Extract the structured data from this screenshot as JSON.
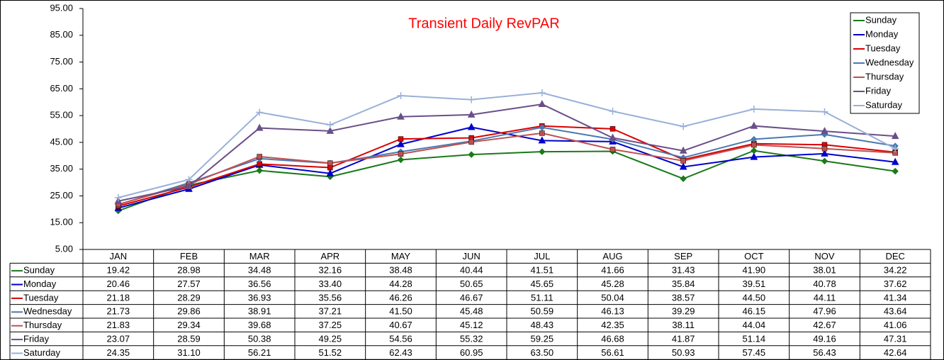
{
  "chart_data": {
    "type": "line",
    "title": "Transient Daily RevPAR",
    "categories": [
      "JAN",
      "FEB",
      "MAR",
      "APR",
      "MAY",
      "JUN",
      "JUL",
      "AUG",
      "SEP",
      "OCT",
      "NOV",
      "DEC"
    ],
    "ylim": [
      5,
      95
    ],
    "yticks": [
      {
        "value": 5,
        "label": "5.00"
      },
      {
        "value": 15,
        "label": "15.00"
      },
      {
        "value": 25,
        "label": "25.00"
      },
      {
        "value": 35,
        "label": "35.00"
      },
      {
        "value": 45,
        "label": "45.00"
      },
      {
        "value": 55,
        "label": "55.00"
      },
      {
        "value": 65,
        "label": "65.00"
      },
      {
        "value": 75,
        "label": "75.00"
      },
      {
        "value": 85,
        "label": "85.00"
      },
      {
        "value": 95,
        "label": "95.00"
      }
    ],
    "grid": false,
    "legend": "top-right",
    "series": [
      {
        "name": "Sunday",
        "color": "#1a7a1a",
        "marker": "diamond",
        "values": [
          19.42,
          28.98,
          34.48,
          32.16,
          38.48,
          40.44,
          41.51,
          41.66,
          31.43,
          41.9,
          38.01,
          34.22
        ],
        "value_labels": [
          "19.42",
          "28.98",
          "34.48",
          "32.16",
          "38.48",
          "40.44",
          "41.51",
          "41.66",
          "31.43",
          "41.90",
          "38.01",
          "34.22"
        ]
      },
      {
        "name": "Monday",
        "color": "#0000cc",
        "marker": "triangle",
        "values": [
          20.46,
          27.57,
          36.56,
          33.4,
          44.28,
          50.65,
          45.65,
          45.28,
          35.84,
          39.51,
          40.78,
          37.62
        ],
        "value_labels": [
          "20.46",
          "27.57",
          "36.56",
          "33.40",
          "44.28",
          "50.65",
          "45.65",
          "45.28",
          "35.84",
          "39.51",
          "40.78",
          "37.62"
        ]
      },
      {
        "name": "Tuesday",
        "color": "#dd0000",
        "marker": "square",
        "values": [
          21.18,
          28.29,
          36.93,
          35.56,
          46.26,
          46.67,
          51.11,
          50.04,
          38.57,
          44.5,
          44.11,
          41.34
        ],
        "value_labels": [
          "21.18",
          "28.29",
          "36.93",
          "35.56",
          "46.26",
          "46.67",
          "51.11",
          "50.04",
          "38.57",
          "44.50",
          "44.11",
          "41.34"
        ]
      },
      {
        "name": "Wednesday",
        "color": "#4a7ab0",
        "marker": "diamond",
        "values": [
          21.73,
          29.86,
          38.91,
          37.21,
          41.5,
          45.48,
          50.59,
          46.13,
          39.29,
          46.15,
          47.96,
          43.64
        ],
        "value_labels": [
          "21.73",
          "29.86",
          "38.91",
          "37.21",
          "41.50",
          "45.48",
          "50.59",
          "46.13",
          "39.29",
          "46.15",
          "47.96",
          "43.64"
        ]
      },
      {
        "name": "Thursday",
        "color": "#c05050",
        "marker": "square",
        "values": [
          21.83,
          29.34,
          39.68,
          37.25,
          40.67,
          45.12,
          48.43,
          42.35,
          38.11,
          44.04,
          42.67,
          41.06
        ],
        "value_labels": [
          "21.83",
          "29.34",
          "39.68",
          "37.25",
          "40.67",
          "45.12",
          "48.43",
          "42.35",
          "38.11",
          "44.04",
          "42.67",
          "41.06"
        ]
      },
      {
        "name": "Friday",
        "color": "#6a4f8a",
        "marker": "triangle",
        "values": [
          23.07,
          28.59,
          50.38,
          49.25,
          54.56,
          55.32,
          59.25,
          46.68,
          41.87,
          51.14,
          49.16,
          47.31
        ],
        "value_labels": [
          "23.07",
          "28.59",
          "50.38",
          "49.25",
          "54.56",
          "55.32",
          "59.25",
          "46.68",
          "41.87",
          "51.14",
          "49.16",
          "47.31"
        ]
      },
      {
        "name": "Saturday",
        "color": "#9ab0d8",
        "marker": "plus",
        "values": [
          24.35,
          31.1,
          56.21,
          51.52,
          62.43,
          60.95,
          63.5,
          56.61,
          50.93,
          57.45,
          56.43,
          42.64
        ],
        "value_labels": [
          "24.35",
          "31.10",
          "56.21",
          "51.52",
          "62.43",
          "60.95",
          "63.50",
          "56.61",
          "50.93",
          "57.45",
          "56.43",
          "42.64"
        ]
      }
    ]
  }
}
